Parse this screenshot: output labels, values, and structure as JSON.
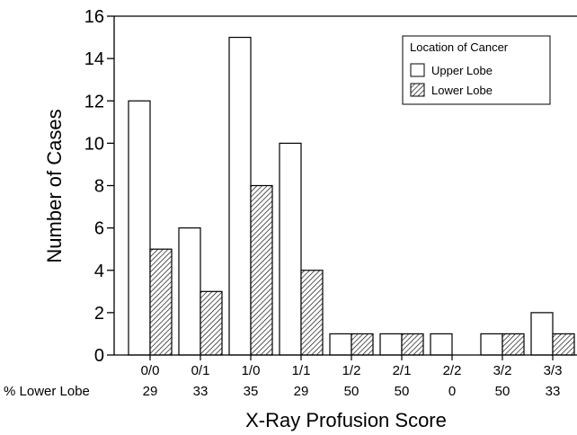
{
  "chart_data": {
    "type": "bar",
    "title": "",
    "xlabel": "X-Ray Profusion Score",
    "ylabel": "Number of Cases",
    "ylim": [
      0,
      16
    ],
    "yticks": [
      0,
      2,
      4,
      6,
      8,
      10,
      12,
      14,
      16
    ],
    "grid": false,
    "categories": [
      "0/0",
      "0/1",
      "1/0",
      "1/1",
      "1/2",
      "2/1",
      "2/2",
      "3/2",
      "3/3"
    ],
    "series": [
      {
        "name": "Upper Lobe",
        "fill": "white",
        "values": [
          12,
          6,
          15,
          10,
          1,
          1,
          1,
          1,
          2
        ]
      },
      {
        "name": "Lower Lobe",
        "fill": "hatched",
        "values": [
          5,
          3,
          8,
          4,
          1,
          1,
          0,
          1,
          1
        ]
      }
    ],
    "row_label": "% Lower Lobe",
    "row_values": [
      "29",
      "33",
      "35",
      "29",
      "50",
      "50",
      "0",
      "50",
      "33"
    ],
    "legend": {
      "title": "Location of Cancer",
      "placement": "top-right"
    },
    "colors": {
      "bar_stroke": "#000000",
      "upper_fill": "#ffffff",
      "hatch": "#000000"
    }
  }
}
